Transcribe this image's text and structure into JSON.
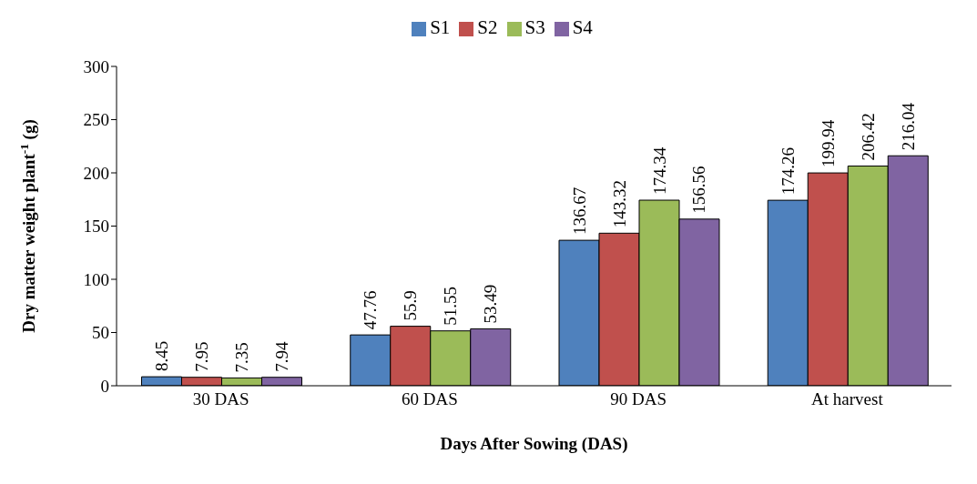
{
  "chart_data": {
    "type": "bar",
    "xlabel": "Days After Sowing (DAS)",
    "ylabel": "Dry matter weight plant$^{-1}$ (g)",
    "categories": [
      "30 DAS",
      "60 DAS",
      "90 DAS",
      "At harvest"
    ],
    "series": [
      {
        "name": "S1",
        "color": "#4f81bd",
        "values": [
          8.45,
          47.76,
          136.67,
          174.26
        ]
      },
      {
        "name": "S2",
        "color": "#c0504d",
        "values": [
          7.95,
          55.9,
          143.32,
          199.94
        ]
      },
      {
        "name": "S3",
        "color": "#9bbb59",
        "values": [
          7.35,
          51.55,
          174.34,
          206.42
        ]
      },
      {
        "name": "S4",
        "color": "#8064a2",
        "values": [
          7.94,
          53.49,
          156.56,
          216.04
        ]
      }
    ],
    "ylim": [
      0,
      300
    ],
    "yticks": [
      0,
      50,
      100,
      150,
      200,
      250,
      300
    ],
    "grid": false,
    "legend": "top",
    "data_labels": true
  }
}
